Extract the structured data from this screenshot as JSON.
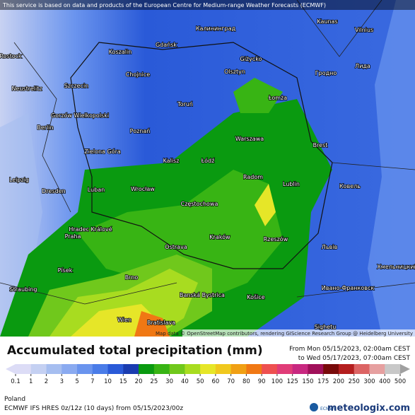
{
  "header": {
    "notice": "This service is based on data and products of the European Centre for Medium-range Weather Forecasts (ECMWF)"
  },
  "map": {
    "attribution": "Map data © OpenStreetMap contributors, rendering GIScience Research Group @ Heidelberg University",
    "cities": [
      "Калининград",
      "Gdańsk",
      "Koszalin",
      "Giżycko",
      "Olsztyn",
      "Chojnice",
      "Toruń",
      "Łomża",
      "Szczecin",
      "Neustrelitz",
      "Rostock",
      "Berlin",
      "Gorzów Wielkopolski",
      "Poznań",
      "Zielona Góra",
      "Warszawa",
      "Kalisz",
      "Łódź",
      "Brest",
      "Radom",
      "Lublin",
      "Dresden",
      "Luban",
      "Wrocław",
      "Częstochowa",
      "Leipzig",
      "Hradec Králové",
      "Praha",
      "Ostrava",
      "Kraków",
      "Rzeszów",
      "Písek",
      "Brno",
      "Banská Bystrica",
      "Košice",
      "Wien",
      "Bratislava",
      "Straubing",
      "Kaunas",
      "Vilnius",
      "Гродно",
      "Лида",
      "Ковель",
      "Львів",
      "Хмельницкий",
      "Ивано-Франковск",
      "Sighetu"
    ]
  },
  "legend": {
    "title": "Accumulated total precipitation (mm)",
    "from": "From Mon 05/15/2023, 02:00am CEST",
    "to": "to Wed 05/17/2023, 07:00am CEST",
    "levels": [
      0.1,
      1,
      2,
      3,
      5,
      7,
      10,
      15,
      20,
      25,
      30,
      40,
      50,
      60,
      70,
      80,
      90,
      100,
      125,
      150,
      175,
      200,
      250,
      300,
      400,
      500
    ],
    "colors": [
      "#dcdcf6",
      "#c4d0f2",
      "#a6bef0",
      "#8aaaf0",
      "#6a94ee",
      "#4a7ce8",
      "#2a5ad8",
      "#1a3cb0",
      "#0a9a10",
      "#38b414",
      "#70c81c",
      "#a8dc20",
      "#e6e628",
      "#f0c81e",
      "#f0a014",
      "#f07814",
      "#ee5050",
      "#e03c78",
      "#c82880",
      "#a0105a",
      "#780a0a",
      "#b41e1e",
      "#dc6464",
      "#e6a0a0",
      "#c8c8c8",
      "#a0a0a0"
    ]
  },
  "footer": {
    "region": "Poland",
    "model": "ECMWF IFS HRES 0z/12z (10 days) from 05/15/2023/00z",
    "ecmwf": "ECMWF",
    "brand": "meteologix.com"
  }
}
